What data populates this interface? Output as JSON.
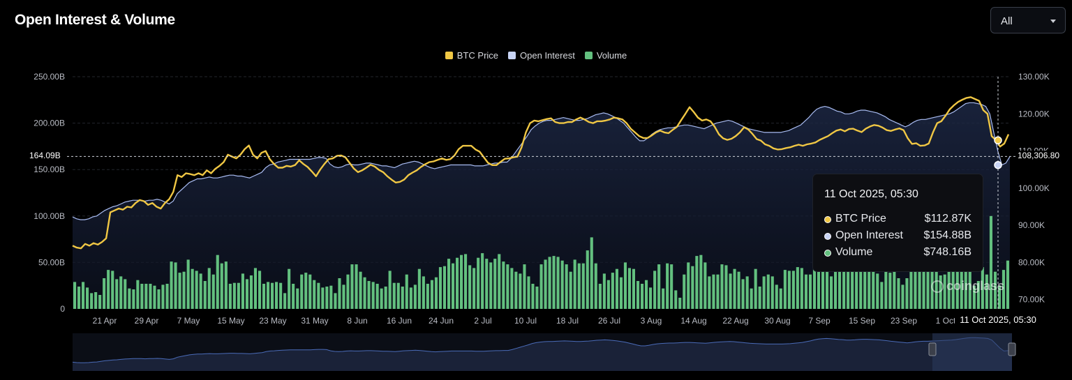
{
  "header": {
    "title": "Open Interest & Volume",
    "range_select": "All"
  },
  "colors": {
    "price": "#f0c744",
    "oi": "#a9bcf2",
    "volume": "#63c07f",
    "bg": "#000000"
  },
  "tooltip": {
    "title": "11 Oct 2025, 05:30",
    "rows": [
      {
        "label": "BTC Price",
        "value": "$112.87K"
      },
      {
        "label": "Open Interest",
        "value": "$154.88B"
      },
      {
        "label": "Volume",
        "value": "$748.16B"
      }
    ]
  },
  "crosshair": {
    "x_label": "11 Oct 2025, 05:30",
    "left_value": "164.09B",
    "right_value": "108,306.80"
  },
  "watermark": "coinglass",
  "chart_data": {
    "type": "line",
    "legend": [
      "BTC Price",
      "Open Interest",
      "Volume"
    ],
    "y_left": {
      "ticks": [
        "250.00B",
        "200.00B",
        "150.00B",
        "100.00B",
        "50.00B",
        "0"
      ],
      "range": [
        0,
        250
      ]
    },
    "y_right": {
      "ticks": [
        "130.00K",
        "120.00K",
        "110.00K",
        "100.00K",
        "90.00K",
        "80.00K",
        "70.00K"
      ],
      "range": [
        67500,
        130000
      ]
    },
    "x_ticks": [
      "21 Apr",
      "29 Apr",
      "7 May",
      "15 May",
      "23 May",
      "31 May",
      "8 Jun",
      "16 Jun",
      "24 Jun",
      "2 Jul",
      "10 Jul",
      "18 Jul",
      "26 Jul",
      "3 Aug",
      "14 Aug",
      "22 Aug",
      "30 Aug",
      "7 Sep",
      "15 Sep",
      "23 Sep",
      "1 Oct"
    ],
    "series": [
      {
        "name": "BTC Price",
        "unit": "USD",
        "axis": "right",
        "values": [
          84500,
          84000,
          83800,
          85000,
          84500,
          85200,
          84800,
          85500,
          86500,
          93500,
          94000,
          94500,
          94200,
          95000,
          94800,
          96000,
          96800,
          96500,
          95500,
          96000,
          95000,
          94500,
          96000,
          97000,
          99000,
          103500,
          103000,
          104000,
          103800,
          103500,
          104000,
          103500,
          104800,
          104000,
          105200,
          106000,
          107000,
          109000,
          108500,
          108000,
          109000,
          110500,
          111500,
          109000,
          108000,
          109500,
          110000,
          107800,
          106500,
          105500,
          105500,
          106000,
          105800,
          106200,
          107500,
          106500,
          105700,
          104500,
          103200,
          105000,
          106500,
          107800,
          108000,
          108700,
          108800,
          108300,
          106800,
          105300,
          104300,
          104800,
          105500,
          106300,
          105800,
          104900,
          104300,
          103200,
          102300,
          101500,
          101700,
          102300,
          103500,
          104200,
          104800,
          105700,
          106400,
          107000,
          107200,
          107600,
          108000,
          107600,
          107800,
          108800,
          110500,
          111400,
          111400,
          111400,
          110400,
          109800,
          108300,
          106800,
          106200,
          106200,
          107100,
          107900,
          108000,
          108300,
          108500,
          111000,
          115000,
          117500,
          118200,
          118000,
          118300,
          118600,
          118800,
          117800,
          117500,
          117500,
          117800,
          117800,
          118500,
          119000,
          118500,
          117800,
          117500,
          118000,
          118000,
          118200,
          118500,
          119000,
          118800,
          118500,
          117500,
          116000,
          115000,
          114000,
          113500,
          113500,
          114200,
          115000,
          115500,
          115000,
          114800,
          115700,
          116500,
          118300,
          120000,
          121800,
          120500,
          119000,
          118200,
          118500,
          118000,
          116500,
          114500,
          113400,
          113000,
          113300,
          114000,
          115000,
          116400,
          115800,
          114600,
          113200,
          112800,
          111800,
          111400,
          110700,
          110400,
          110500,
          110800,
          111000,
          111400,
          111700,
          111400,
          111800,
          112000,
          112300,
          113000,
          113500,
          114000,
          114800,
          115500,
          115800,
          115300,
          115900,
          116000,
          115500,
          115100,
          116000,
          116600,
          117000,
          116800,
          116300,
          115600,
          115400,
          115800,
          116100,
          115600,
          113400,
          111900,
          112100,
          111400,
          111500,
          112000,
          115000,
          117500,
          118000,
          119500,
          121200,
          122300,
          123200,
          123800,
          124300,
          124500,
          124000,
          123500,
          121000,
          120000,
          114000,
          112900,
          111200,
          112000,
          114500
        ],
        "tooltip_value": 112870
      },
      {
        "name": "Open Interest",
        "unit": "USD",
        "axis": "left",
        "values": [
          99,
          97,
          96,
          96,
          97,
          99,
          100,
          103,
          106,
          108,
          110,
          111,
          113,
          115,
          116,
          117,
          117,
          117,
          116,
          117,
          117,
          118,
          117,
          115,
          113,
          116,
          124,
          128,
          132,
          136,
          138,
          140,
          140,
          141,
          142,
          141,
          141,
          142,
          143,
          144,
          144,
          143,
          143,
          142,
          141,
          143,
          145,
          147,
          152,
          155,
          156,
          158,
          159,
          160,
          161,
          161,
          161,
          161,
          161,
          161,
          162,
          163,
          163,
          162,
          156,
          153,
          152,
          153,
          155,
          156,
          155,
          155,
          156,
          157,
          157,
          156,
          155,
          154,
          154,
          153,
          152,
          154,
          156,
          157,
          158,
          159,
          158,
          156,
          154,
          152,
          151,
          152,
          153,
          154,
          155,
          155,
          155,
          155,
          155,
          155,
          154,
          154,
          154,
          155,
          156,
          157,
          157,
          158,
          158,
          162,
          168,
          174,
          180,
          186,
          193,
          197,
          200,
          202,
          203,
          203,
          204,
          205,
          206,
          205,
          204,
          203,
          203,
          204,
          205,
          207,
          209,
          210,
          211,
          210,
          208,
          206,
          203,
          200,
          195,
          190,
          185,
          181,
          181,
          184,
          188,
          191,
          193,
          194,
          195,
          195,
          196,
          197,
          198,
          198,
          197,
          196,
          195,
          194,
          196,
          198,
          200,
          201,
          202,
          203,
          202,
          200,
          198,
          196,
          194,
          193,
          192,
          191,
          190,
          190,
          190,
          190,
          190,
          191,
          192,
          194,
          196,
          198,
          202,
          206,
          211,
          215,
          217,
          218,
          217,
          215,
          213,
          212,
          210,
          210,
          211,
          213,
          214,
          214,
          213,
          212,
          211,
          209,
          207,
          204,
          202,
          200,
          198,
          196,
          198,
          201,
          203,
          204,
          204,
          205,
          206,
          207,
          208,
          209,
          210,
          212,
          215,
          218,
          221,
          222,
          222,
          221,
          220,
          218,
          210,
          190,
          170,
          155,
          157,
          164
        ],
        "tooltip_value": 154.88
      },
      {
        "name": "Volume",
        "unit": "USD (billions, left axis)",
        "axis": "left",
        "values": [
          29,
          24,
          29,
          23,
          17,
          18,
          15,
          33,
          42,
          41,
          32,
          35,
          32,
          22,
          21,
          31,
          27,
          27,
          27,
          25,
          21,
          26,
          27,
          51,
          50,
          39,
          40,
          53,
          43,
          41,
          38,
          30,
          44,
          37,
          58,
          49,
          51,
          27,
          28,
          28,
          38,
          32,
          36,
          44,
          41,
          27,
          29,
          28,
          29,
          28,
          17,
          43,
          27,
          22,
          37,
          39,
          37,
          31,
          28,
          23,
          24,
          25,
          17,
          33,
          26,
          37,
          48,
          48,
          40,
          34,
          30,
          29,
          27,
          22,
          24,
          41,
          28,
          28,
          24,
          37,
          23,
          26,
          43,
          35,
          27,
          31,
          34,
          45,
          46,
          54,
          49,
          55,
          58,
          59,
          47,
          44,
          55,
          60,
          54,
          50,
          54,
          59,
          51,
          48,
          44,
          40,
          38,
          48,
          35,
          27,
          24,
          48,
          53,
          56,
          57,
          56,
          52,
          48,
          40,
          53,
          49,
          49,
          63,
          77,
          49,
          27,
          38,
          31,
          39,
          43,
          34,
          50,
          44,
          43,
          30,
          27,
          31,
          23,
          41,
          48,
          22,
          49,
          48,
          20,
          12,
          37,
          50,
          46,
          57,
          58,
          50,
          35,
          37,
          37,
          48,
          47,
          38,
          43,
          40,
          32,
          35,
          22,
          43,
          24,
          35,
          37,
          35,
          26,
          22,
          42,
          41,
          41,
          45,
          44,
          37,
          37,
          43,
          41,
          45,
          44,
          35,
          42,
          40,
          41,
          40,
          42,
          45,
          50,
          44,
          46,
          47,
          38,
          29,
          53,
          39,
          41,
          33,
          26,
          33,
          41,
          43,
          43,
          44,
          44,
          43,
          49,
          36,
          37,
          49,
          45,
          48,
          44,
          49,
          53,
          25,
          30,
          45,
          37,
          100,
          40,
          25,
          42,
          52
        ],
        "tooltip_value": 748.16
      }
    ]
  }
}
